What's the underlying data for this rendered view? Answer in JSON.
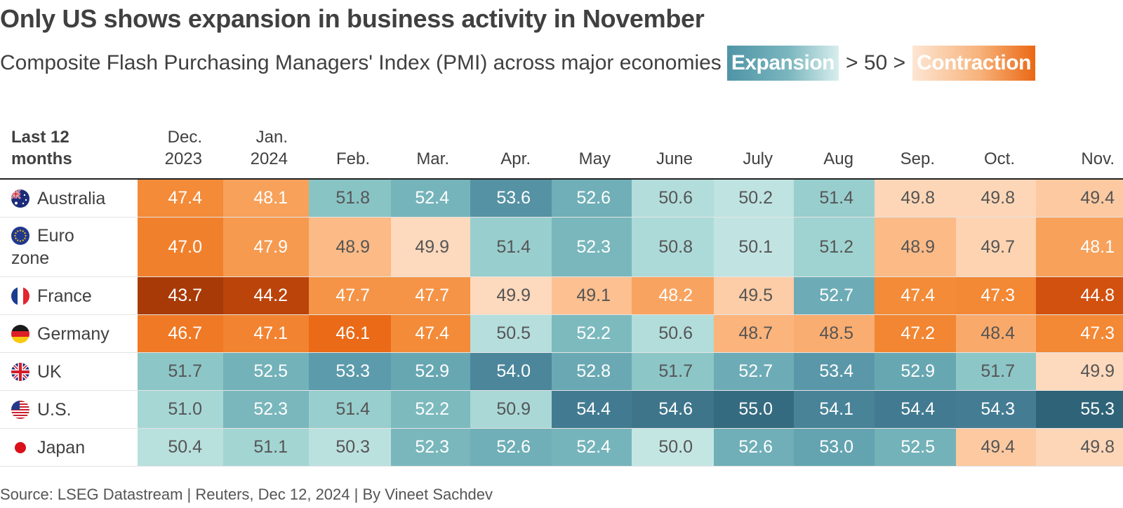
{
  "title": "Only US shows expansion in business activity in November",
  "subtitle": "Composite Flash Purchasing Managers' Index (PMI) across major economies",
  "legend": {
    "expansion_label": "Expansion",
    "middle_label": "> 50 >",
    "contraction_label": "Contraction"
  },
  "source": "Source: LSEG Datastream | Reuters, Dec 12, 2024 | By Vineet Sachdev",
  "colors": {
    "expansion_dark": "#2f6378",
    "expansion_light": "#d2ecea",
    "contraction_light": "#fde6d4",
    "contraction_dark": "#a83a07"
  },
  "chart_data": {
    "type": "heatmap",
    "title": "Only US shows expansion in business activity in November",
    "subtitle": "Composite Flash Purchasing Managers' Index (PMI) across major economies",
    "corner_header": [
      "Last 12",
      "months"
    ],
    "columns": [
      [
        "Dec.",
        "2023"
      ],
      [
        "Jan.",
        "2024"
      ],
      [
        "Feb."
      ],
      [
        "Mar."
      ],
      [
        "Apr."
      ],
      [
        "May"
      ],
      [
        "June"
      ],
      [
        "July"
      ],
      [
        "Aug"
      ],
      [
        "Sep."
      ],
      [
        "Oct."
      ],
      [
        "Nov."
      ]
    ],
    "threshold": 50,
    "rows": [
      {
        "label": [
          "Australia"
        ],
        "flag": "australia-flag-icon",
        "values": [
          47.4,
          48.1,
          51.8,
          52.4,
          53.6,
          52.6,
          50.6,
          50.2,
          51.4,
          49.8,
          49.8,
          49.4
        ]
      },
      {
        "label": [
          "Euro",
          "zone"
        ],
        "flag": "eu-flag-icon",
        "values": [
          47.0,
          47.9,
          48.9,
          49.9,
          51.4,
          52.3,
          50.8,
          50.1,
          51.2,
          48.9,
          49.7,
          48.1
        ]
      },
      {
        "label": [
          "France"
        ],
        "flag": "france-flag-icon",
        "values": [
          43.7,
          44.2,
          47.7,
          47.7,
          49.9,
          49.1,
          48.2,
          49.5,
          52.7,
          47.4,
          47.3,
          44.8
        ]
      },
      {
        "label": [
          "Germany"
        ],
        "flag": "germany-flag-icon",
        "values": [
          46.7,
          47.1,
          46.1,
          47.4,
          50.5,
          52.2,
          50.6,
          48.7,
          48.5,
          47.2,
          48.4,
          47.3
        ]
      },
      {
        "label": [
          "UK"
        ],
        "flag": "uk-flag-icon",
        "values": [
          51.7,
          52.5,
          53.3,
          52.9,
          54.0,
          52.8,
          51.7,
          52.7,
          53.4,
          52.9,
          51.7,
          49.9
        ]
      },
      {
        "label": [
          "U.S."
        ],
        "flag": "us-flag-icon",
        "values": [
          51.0,
          52.3,
          51.4,
          52.2,
          50.9,
          54.4,
          54.6,
          55.0,
          54.1,
          54.4,
          54.3,
          55.3
        ]
      },
      {
        "label": [
          "Japan"
        ],
        "flag": "japan-flag-icon",
        "values": [
          50.4,
          51.1,
          50.3,
          52.3,
          52.6,
          52.4,
          50.0,
          52.6,
          53.0,
          52.5,
          49.4,
          49.8
        ]
      }
    ]
  }
}
